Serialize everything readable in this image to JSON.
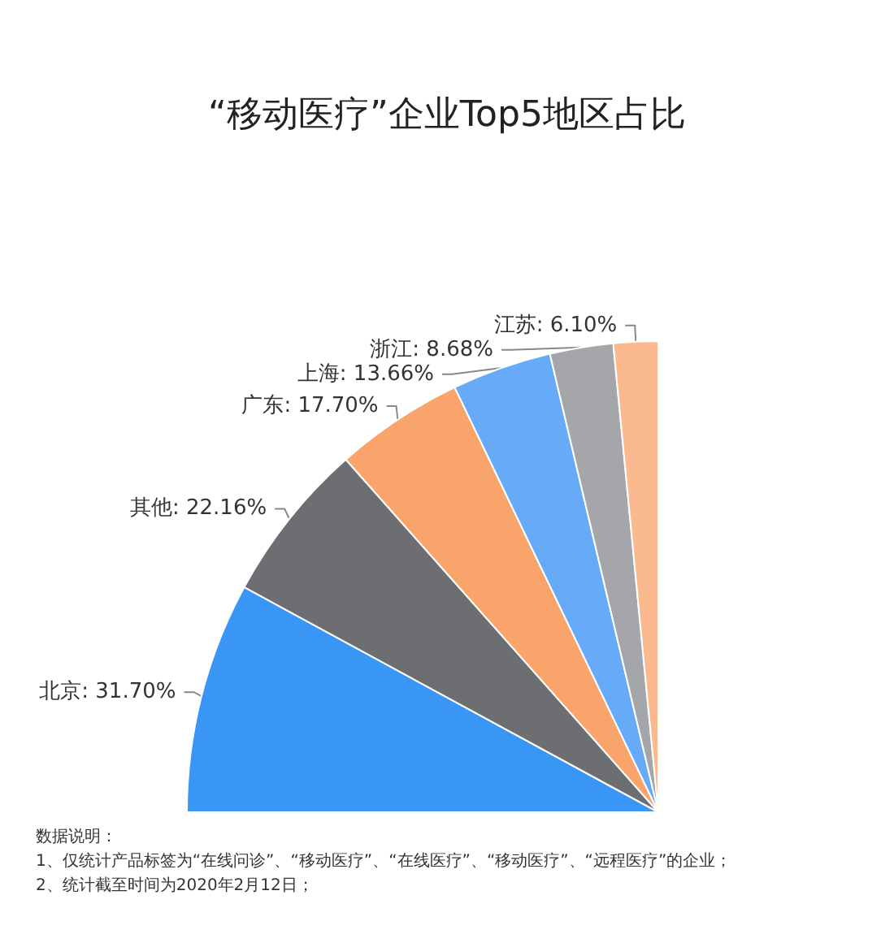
{
  "chart_data": {
    "type": "pie",
    "title": "“移动医疗”企业Top5地区占比",
    "categories": [
      "北京",
      "其他",
      "广东",
      "上海",
      "浙江",
      "江苏"
    ],
    "values": [
      31.7,
      22.16,
      17.7,
      13.66,
      8.68,
      6.1
    ],
    "value_labels": [
      "31.70%",
      "22.16%",
      "17.70%",
      "13.66%",
      "8.68%",
      "6.10%"
    ],
    "colors": [
      "#3a96f4",
      "#6d6e71",
      "#f8a46a",
      "#66aaf8",
      "#a5a6a9",
      "#fbb98f"
    ],
    "legend": false,
    "annotations": [
      "数据说明：",
      "1、仅统计产品标签为“在线问诊”、“移动医疗”、“在线医疗”、“移动医疗”、“远程医疗”的企业；",
      "2、统计截至时间为2020年2月12日；"
    ]
  }
}
